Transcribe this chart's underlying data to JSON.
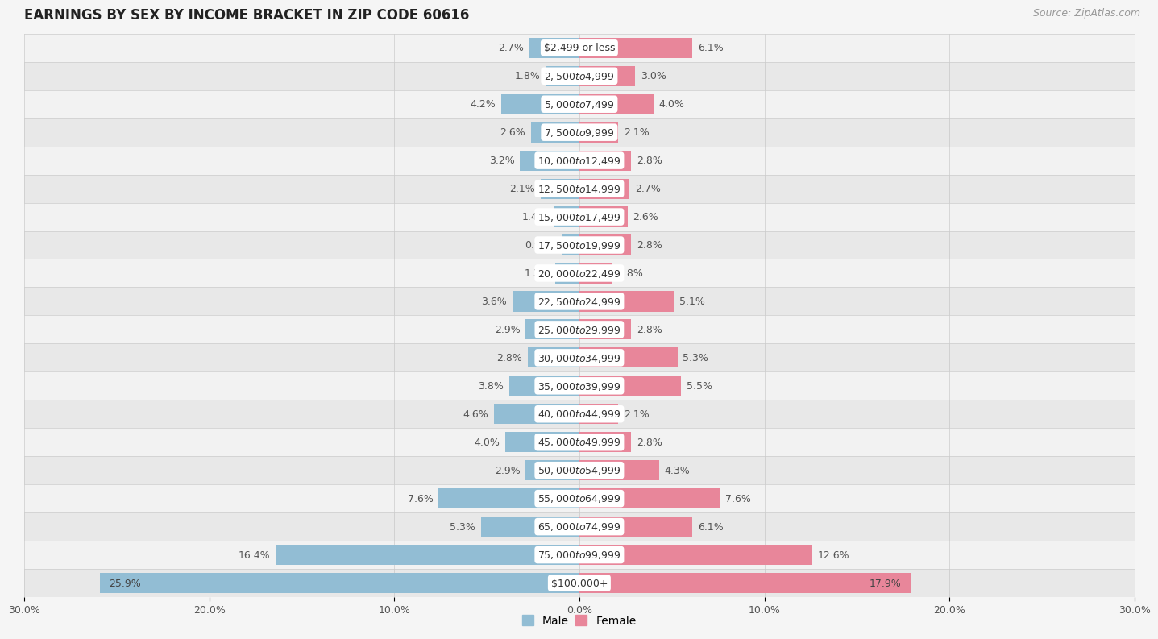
{
  "title": "EARNINGS BY SEX BY INCOME BRACKET IN ZIP CODE 60616",
  "source": "Source: ZipAtlas.com",
  "categories": [
    "$2,499 or less",
    "$2,500 to $4,999",
    "$5,000 to $7,499",
    "$7,500 to $9,999",
    "$10,000 to $12,499",
    "$12,500 to $14,999",
    "$15,000 to $17,499",
    "$17,500 to $19,999",
    "$20,000 to $22,499",
    "$22,500 to $24,999",
    "$25,000 to $29,999",
    "$30,000 to $34,999",
    "$35,000 to $39,999",
    "$40,000 to $44,999",
    "$45,000 to $49,999",
    "$50,000 to $54,999",
    "$55,000 to $64,999",
    "$65,000 to $74,999",
    "$75,000 to $99,999",
    "$100,000+"
  ],
  "male_values": [
    2.7,
    1.8,
    4.2,
    2.6,
    3.2,
    2.1,
    1.4,
    0.94,
    1.3,
    3.6,
    2.9,
    2.8,
    3.8,
    4.6,
    4.0,
    2.9,
    7.6,
    5.3,
    16.4,
    25.9
  ],
  "female_values": [
    6.1,
    3.0,
    4.0,
    2.1,
    2.8,
    2.7,
    2.6,
    2.8,
    1.8,
    5.1,
    2.8,
    5.3,
    5.5,
    2.1,
    2.8,
    4.3,
    7.6,
    6.1,
    12.6,
    17.9
  ],
  "male_color": "#92bdd4",
  "female_color": "#e8869a",
  "row_colors": [
    "#f0f0f0",
    "#e0e0e0"
  ],
  "background_color": "#f5f5f5",
  "xlim": 30.0,
  "title_fontsize": 12,
  "source_fontsize": 9,
  "category_fontsize": 9,
  "value_fontsize": 9,
  "bar_height": 0.72,
  "legend_male_label": "Male",
  "legend_female_label": "Female",
  "tick_labels": [
    "30.0%",
    "20.0%",
    "10.0%",
    "0.0%",
    "10.0%",
    "20.0%",
    "30.0%"
  ],
  "tick_positions": [
    -30,
    -20,
    -10,
    0,
    10,
    20,
    30
  ]
}
